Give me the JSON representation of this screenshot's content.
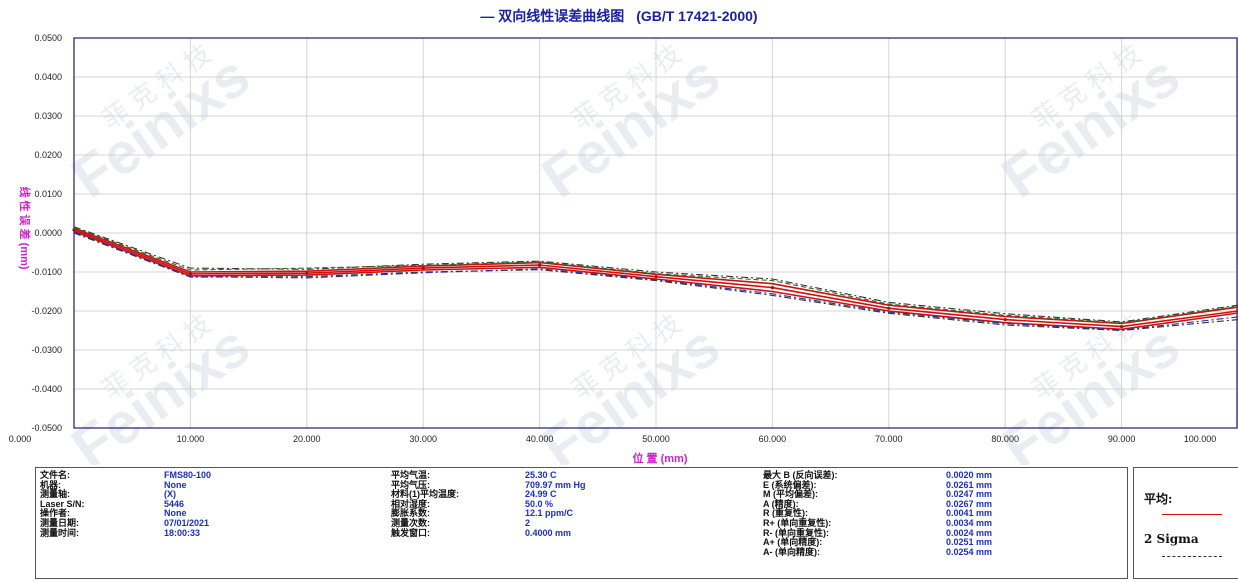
{
  "chart_data": {
    "type": "line",
    "title": "— 双向线性误差曲线图",
    "subtitle": "(GB/T 17421-2000)",
    "xlabel": "位 置 (mm)",
    "ylabel": "线 性 误 差 (mm)",
    "xlim": [
      0,
      100
    ],
    "ylim": [
      -0.05,
      0.05
    ],
    "x_tick_labels": [
      "0.000",
      "10.000",
      "20.000",
      "30.000",
      "40.000",
      "50.000",
      "60.000",
      "70.000",
      "80.000",
      "90.000",
      "100.000"
    ],
    "y_tick_labels": [
      "0.0500",
      "0.0400",
      "0.0300",
      "0.0200",
      "0.0100",
      "0.0000",
      "-0.0100",
      "-0.0200",
      "-0.0300",
      "-0.0400",
      "-0.0500"
    ],
    "grid": true,
    "x": [
      0,
      10,
      20,
      30,
      40,
      50,
      60,
      70,
      80,
      90,
      100
    ],
    "series": [
      {
        "name": "平均",
        "style": "solid",
        "color": "#cc1111",
        "values": [
          0.0008,
          -0.0105,
          -0.0103,
          -0.009,
          -0.0082,
          -0.0112,
          -0.014,
          -0.0193,
          -0.0222,
          -0.024,
          -0.02
        ]
      },
      {
        "style": "solid",
        "color": "#cc1111",
        "values": [
          0.0012,
          -0.01,
          -0.0098,
          -0.0085,
          -0.0076,
          -0.0106,
          -0.013,
          -0.0185,
          -0.0214,
          -0.0232,
          -0.019
        ]
      },
      {
        "style": "solid",
        "color": "#cc1111",
        "values": [
          0.0004,
          -0.011,
          -0.0108,
          -0.0095,
          -0.0088,
          -0.0118,
          -0.015,
          -0.02,
          -0.023,
          -0.0247,
          -0.0205
        ]
      },
      {
        "style": "dashdot",
        "color": "#333333",
        "values": [
          0.0016,
          -0.009,
          -0.0093,
          -0.008,
          -0.0072,
          -0.01,
          -0.0118,
          -0.0178,
          -0.0207,
          -0.0228,
          -0.0185
        ]
      },
      {
        "style": "dashdot",
        "color": "#333333",
        "values": [
          0.0,
          -0.0113,
          -0.0112,
          -0.01,
          -0.0094,
          -0.0122,
          -0.016,
          -0.0206,
          -0.0236,
          -0.025,
          -0.0222
        ]
      },
      {
        "style": "dashed",
        "color": "#2a6b2a",
        "values": [
          0.0014,
          -0.0095,
          -0.009,
          -0.0083,
          -0.0074,
          -0.0104,
          -0.0122,
          -0.0182,
          -0.0211,
          -0.023,
          -0.0188
        ]
      },
      {
        "style": "dashdot",
        "color": "#2233aa",
        "values": [
          0.0002,
          -0.0112,
          -0.0115,
          -0.0102,
          -0.0092,
          -0.012,
          -0.0156,
          -0.0203,
          -0.0232,
          -0.0249,
          -0.0215
        ]
      }
    ],
    "legend_position": "right"
  },
  "watermark": {
    "text": "Feinixs",
    "cn": "菲 克 科 技"
  },
  "info": {
    "col1": [
      {
        "label": "文件名:",
        "value": "FMS80-100"
      },
      {
        "label": "机器:",
        "value": "None"
      },
      {
        "label": "测量轴:",
        "value": "(X)"
      },
      {
        "label": "Laser S/N:",
        "value": "5446"
      },
      {
        "label": "操作者:",
        "value": "None"
      },
      {
        "label": "测量日期:",
        "value": "07/01/2021"
      },
      {
        "label": "测量时间:",
        "value": "18:00:33"
      }
    ],
    "col2": [
      {
        "label": "平均气温:",
        "value": "25.30 C"
      },
      {
        "label": "平均气压:",
        "value": "709.97 mm Hg"
      },
      {
        "label": "材料(1)平均温度:",
        "value": "24.99 C"
      },
      {
        "label": "相对湿度:",
        "value": "50.0 %"
      },
      {
        "label": "膨胀系数:",
        "value": "12.1 ppm/C"
      },
      {
        "label": "测量次数:",
        "value": "2"
      },
      {
        "label": "触发窗口:",
        "value": "0.4000 mm"
      }
    ],
    "col3": [
      {
        "label": "最大 B (反向误差):",
        "value": "0.0020 mm"
      },
      {
        "label": "E (系统偏差):",
        "value": "0.0261 mm"
      },
      {
        "label": "M (平均偏差):",
        "value": "0.0247 mm"
      },
      {
        "label": "A (精度):",
        "value": "0.0267 mm"
      },
      {
        "label": "R (重复性):",
        "value": "0.0041 mm"
      },
      {
        "label": "R+ (单向重复性):",
        "value": "0.0034 mm"
      },
      {
        "label": "R- (单向重复性):",
        "value": "0.0024 mm"
      },
      {
        "label": "A+ (单向精度):",
        "value": "0.0251 mm"
      },
      {
        "label": "A- (单向精度):",
        "value": "0.0254 mm"
      }
    ]
  },
  "legend": {
    "avg_label": "平均:",
    "avg_color": "#cc1111",
    "sigma_label": "2 Sigma",
    "sigma_color": "#333333"
  }
}
